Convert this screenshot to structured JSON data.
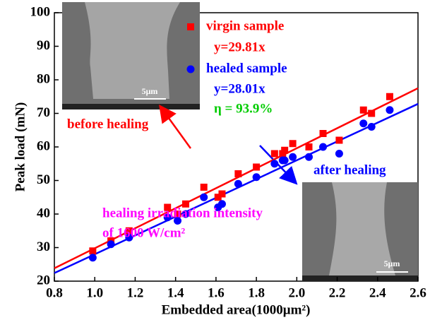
{
  "chart_data": {
    "type": "scatter",
    "x_label": "Embedded area(1000μm²)",
    "y_label": "Peak load (mN)",
    "xlim": [
      0.8,
      2.6
    ],
    "ylim": [
      20,
      100
    ],
    "xticks": [
      0.8,
      {
        "value": 1,
        "label": "1.0"
      },
      1.2,
      1.4,
      1.6,
      1.8,
      {
        "value": 2,
        "label": "2.0"
      },
      2.2,
      2.4,
      2.6
    ],
    "yticks": [
      20,
      30,
      40,
      50,
      60,
      70,
      80,
      90,
      100
    ],
    "series": [
      {
        "name": "virgin sample",
        "color": "#ff0000",
        "marker": "square",
        "x": [
          0.99,
          1.08,
          1.17,
          1.36,
          1.41,
          1.45,
          1.54,
          1.61,
          1.63,
          1.71,
          1.8,
          1.89,
          1.93,
          1.94,
          1.98,
          2.06,
          2.13,
          2.21,
          2.33,
          2.37,
          2.46
        ],
        "values": [
          29,
          32,
          35,
          42,
          40,
          43,
          48,
          45,
          46,
          52,
          54,
          58,
          58,
          59,
          61,
          60,
          64,
          62,
          71,
          70,
          75
        ]
      },
      {
        "name": "healed sample",
        "color": "#0000ff",
        "marker": "circle",
        "x": [
          0.99,
          1.08,
          1.17,
          1.36,
          1.41,
          1.45,
          1.54,
          1.61,
          1.63,
          1.71,
          1.8,
          1.89,
          1.93,
          1.94,
          1.98,
          2.06,
          2.13,
          2.21,
          2.33,
          2.37,
          2.46
        ],
        "values": [
          27,
          31,
          33,
          39,
          38,
          40,
          45,
          42,
          43,
          49,
          51,
          55,
          56,
          56,
          57,
          57,
          60,
          58,
          67,
          66,
          71
        ]
      }
    ],
    "fit_lines": [
      {
        "color": "#ff0000",
        "x": [
          0.8,
          2.6
        ],
        "values": [
          23.85,
          77.5
        ]
      },
      {
        "color": "#0000ff",
        "x": [
          0.8,
          2.6
        ],
        "values": [
          22.41,
          72.83
        ]
      }
    ],
    "annotations": [
      {
        "text": "y=29.81x",
        "color": "#ff0000"
      },
      {
        "text": "y=28.01x",
        "color": "#0000ff"
      },
      {
        "text": "η  = 93.9%",
        "color": "#00cc00"
      },
      {
        "text": "before healing",
        "color": "#ff0000"
      },
      {
        "text": "after healing",
        "color": "#0000ff"
      },
      {
        "text": "healing irradiation intensity",
        "color": "#ff00ff"
      },
      {
        "text": "of 1600 W/cm²",
        "color": "#ff00ff"
      }
    ],
    "inset_labels": [
      "5μm",
      "5μm"
    ]
  }
}
